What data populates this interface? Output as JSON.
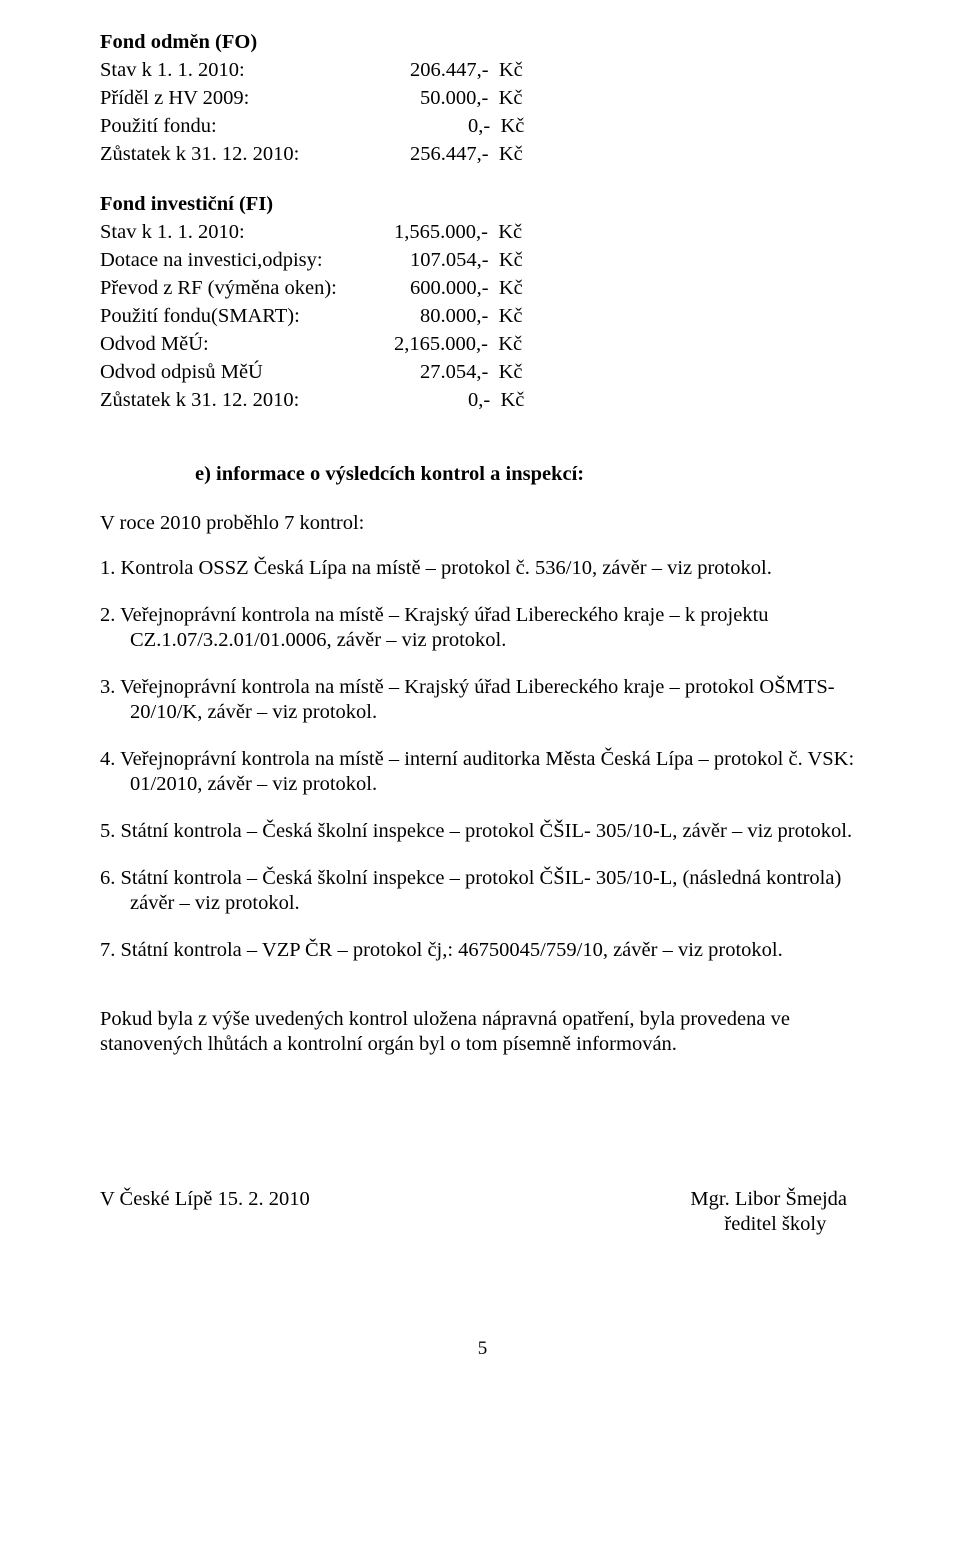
{
  "fondFO": {
    "title": "Fond odměn (FO)",
    "rows": [
      {
        "label": "Stav k 1. 1. 2010:",
        "value": "206.447,-  Kč",
        "label_w": 310
      },
      {
        "label": "Příděl z HV 2009:",
        "value": "50.000,-  Kč",
        "label_w": 320
      },
      {
        "label": "Použití fondu:",
        "value": "0,-  Kč",
        "label_w": 368
      },
      {
        "label": "Zůstatek k 31. 12. 2010:",
        "value": "256.447,-  Kč",
        "label_w": 310
      }
    ]
  },
  "fondFI": {
    "title": "Fond investiční (FI)",
    "rows": [
      {
        "label": "Stav k 1. 1. 2010:",
        "value": "1,565.000,-  Kč",
        "label_w": 294
      },
      {
        "label": "Dotace na investici,odpisy:",
        "value": "107.054,-  Kč",
        "label_w": 310
      },
      {
        "label": "Převod z RF (výměna oken):",
        "value": "600.000,-  Kč",
        "label_w": 310
      },
      {
        "label": "Použití fondu(SMART):",
        "value": "80.000,-  Kč",
        "label_w": 320
      },
      {
        "label": "Odvod MěÚ:",
        "value": "2,165.000,-  Kč",
        "label_w": 294
      },
      {
        "label": "Odvod odpisů MěÚ",
        "value": "27.054,-  Kč",
        "label_w": 320
      },
      {
        "label": "Zůstatek k 31. 12. 2010:",
        "value": "0,-  Kč",
        "label_w": 368
      }
    ]
  },
  "sectionE": {
    "heading": "e) informace o výsledcích kontrol a inspekcí:",
    "intro": "V roce 2010 proběhlo 7 kontrol:",
    "items": [
      "1. Kontrola OSSZ Česká Lípa na místě – protokol č. 536/10, závěr – viz protokol.",
      "2. Veřejnoprávní kontrola na místě – Krajský úřad Libereckého kraje – k projektu CZ.1.07/3.2.01/01.0006, závěr – viz protokol.",
      "3. Veřejnoprávní kontrola na místě – Krajský úřad Libereckého kraje – protokol OŠMTS-20/10/K, závěr – viz protokol.",
      "4. Veřejnoprávní kontrola na místě – interní auditorka Města Česká Lípa – protokol č. VSK: 01/2010, závěr – viz protokol.",
      "5. Státní kontrola – Česká školní inspekce – protokol ČŠIL- 305/10-L, závěr – viz protokol.",
      "6. Státní kontrola – Česká školní inspekce – protokol ČŠIL- 305/10-L, (následná kontrola) závěr – viz protokol.",
      "7. Státní kontrola – VZP ČR – protokol čj,: 46750045/759/10, závěr – viz protokol."
    ]
  },
  "closingPara": "Pokud byla z výše uvedených kontrol uložena nápravná opatření, byla provedena ve stanovených lhůtách a kontrolní orgán byl o tom písemně informován.",
  "footer": {
    "place_date": "V České Lípě 15. 2. 2010",
    "name": "Mgr. Libor Šmejda",
    "role": "ředitel  školy"
  },
  "pageNumber": "5"
}
